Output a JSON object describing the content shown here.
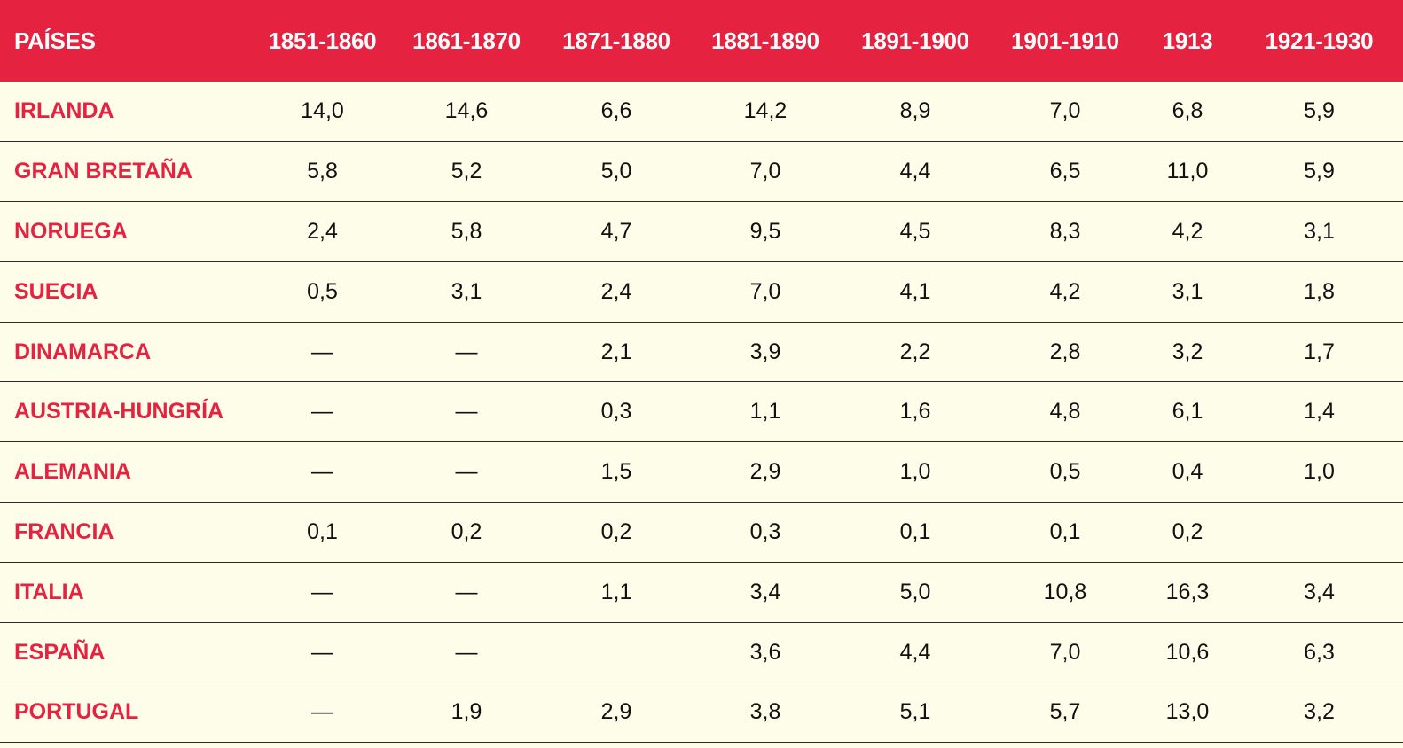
{
  "chart_data": {
    "type": "table",
    "columns": [
      "PAÍSES",
      "1851-1860",
      "1861-1870",
      "1871-1880",
      "1881-1890",
      "1891-1900",
      "1901-1910",
      "1913",
      "1921-1930"
    ],
    "rows": [
      {
        "country": "IRLANDA",
        "values": [
          "14,0",
          "14,6",
          "6,6",
          "14,2",
          "8,9",
          "7,0",
          "6,8",
          "5,9"
        ]
      },
      {
        "country": "GRAN BRETAÑA",
        "values": [
          "5,8",
          "5,2",
          "5,0",
          "7,0",
          "4,4",
          "6,5",
          "11,0",
          "5,9"
        ]
      },
      {
        "country": "NORUEGA",
        "values": [
          "2,4",
          "5,8",
          "4,7",
          "9,5",
          "4,5",
          "8,3",
          "4,2",
          "3,1"
        ]
      },
      {
        "country": "SUECIA",
        "values": [
          "0,5",
          "3,1",
          "2,4",
          "7,0",
          "4,1",
          "4,2",
          "3,1",
          "1,8"
        ]
      },
      {
        "country": "DINAMARCA",
        "values": [
          "—",
          "—",
          "2,1",
          "3,9",
          "2,2",
          "2,8",
          "3,2",
          "1,7"
        ]
      },
      {
        "country": "AUSTRIA-HUNGRÍA",
        "values": [
          "—",
          "—",
          "0,3",
          "1,1",
          "1,6",
          "4,8",
          "6,1",
          "1,4"
        ]
      },
      {
        "country": "ALEMANIA",
        "values": [
          "—",
          "—",
          "1,5",
          "2,9",
          "1,0",
          "0,5",
          "0,4",
          "1,0"
        ]
      },
      {
        "country": "FRANCIA",
        "values": [
          "0,1",
          "0,2",
          "0,2",
          "0,3",
          "0,1",
          "0,1",
          "0,2",
          ""
        ]
      },
      {
        "country": "ITALIA",
        "values": [
          "—",
          "—",
          "1,1",
          "3,4",
          "5,0",
          "10,8",
          "16,3",
          "3,4"
        ]
      },
      {
        "country": "ESPAÑA",
        "values": [
          "—",
          "—",
          "",
          "3,6",
          "4,4",
          "7,0",
          "10,6",
          "6,3"
        ]
      },
      {
        "country": "PORTUGAL",
        "values": [
          "—",
          "1,9",
          "2,9",
          "3,8",
          "5,1",
          "5,7",
          "13,0",
          "3,2"
        ]
      }
    ]
  },
  "colors": {
    "header_bg": "#e52340",
    "header_text": "#ffffff",
    "country_text": "#e52340",
    "body_bg": "#fefde9",
    "value_text": "#111111",
    "row_divider": "#2b2b2b"
  }
}
